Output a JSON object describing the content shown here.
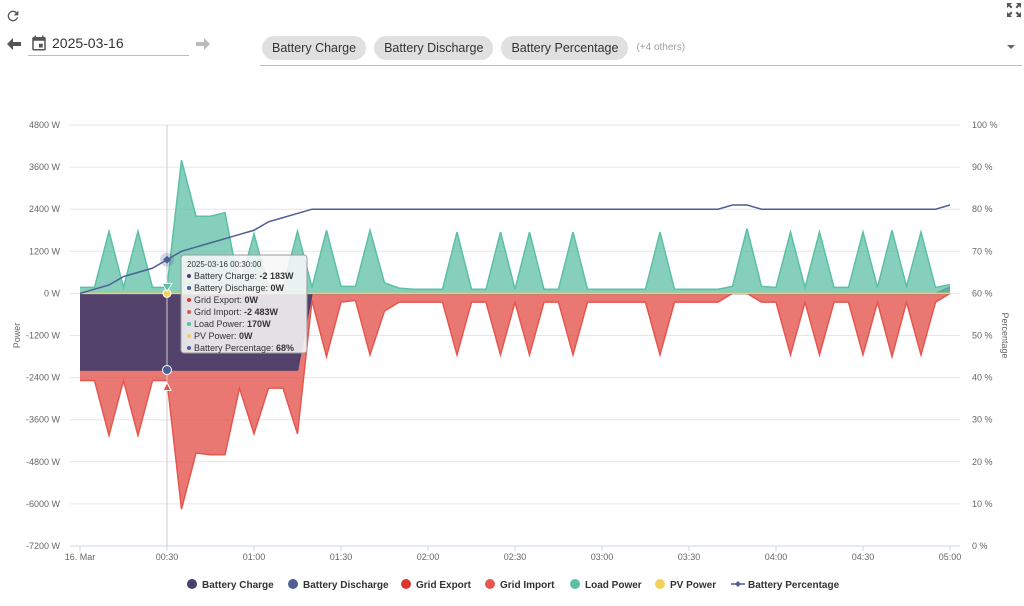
{
  "toolbar": {
    "refresh_icon": "refresh-icon",
    "fullscreen_icon": "fullscreen-icon",
    "prev_icon": "arrow-left-icon",
    "next_icon": "arrow-right-icon",
    "calendar_icon": "calendar-icon",
    "date_value": "2025-03-16",
    "dropdown_icon": "caret-down-icon"
  },
  "series_selector": {
    "chips": [
      "Battery Charge",
      "Battery Discharge",
      "Battery Percentage"
    ],
    "others_label": "(+4 others)"
  },
  "colors": {
    "battery_charge": "#4a3f6b",
    "battery_discharge": "#4e5f96",
    "grid_export": "#d9372f",
    "grid_import": "#e5564f",
    "load_power": "#5cbfa6",
    "pv_power": "#f2d15c",
    "battery_percentage": "#4e5f96"
  },
  "chart_data": {
    "type": "area",
    "title": "",
    "xlabel": "",
    "ylabel": "Power",
    "y2label": "Percentage",
    "ylim": [
      -7200,
      4800
    ],
    "y2lim": [
      0,
      100
    ],
    "grid": true,
    "legend_position": "bottom",
    "yticks": [
      "4800 W",
      "3600 W",
      "2400 W",
      "1200 W",
      "0 W",
      "-1200 W",
      "-2400 W",
      "-3600 W",
      "-4800 W",
      "-6000 W",
      "-7200 W"
    ],
    "y2ticks": [
      "100 %",
      "90 %",
      "80 %",
      "70 %",
      "60 %",
      "50 %",
      "40 %",
      "30 %",
      "20 %",
      "10 %",
      "0 %"
    ],
    "xticks": [
      "16. Mar",
      "00:30",
      "01:00",
      "01:30",
      "02:00",
      "02:30",
      "03:00",
      "03:30",
      "04:00",
      "04:30",
      "05:00"
    ],
    "x_minutes_step": 5,
    "x_range_minutes": [
      0,
      300
    ],
    "series": [
      {
        "name": "Battery Charge",
        "key": "battery_charge",
        "axis": "left",
        "kind": "area",
        "values": [
          -2183,
          -2183,
          -2183,
          -2183,
          -2183,
          -2183,
          -2183,
          -2183,
          -2183,
          -2183,
          -2183,
          -2183,
          -2183,
          -2183,
          -2183,
          -2183,
          0,
          0,
          0,
          0,
          0,
          0,
          0,
          0,
          0,
          0,
          0,
          0,
          0,
          0,
          0,
          0,
          0,
          0,
          0,
          0,
          0,
          0,
          0,
          0,
          0,
          0,
          0,
          0,
          0,
          0,
          0,
          0,
          0,
          0,
          0,
          0,
          0,
          0,
          0,
          0,
          0,
          0,
          0,
          0,
          0
        ]
      },
      {
        "name": "Battery Discharge",
        "key": "battery_discharge",
        "axis": "left",
        "kind": "area",
        "values": [
          0,
          0,
          0,
          0,
          0,
          0,
          0,
          0,
          0,
          0,
          0,
          0,
          0,
          0,
          0,
          0,
          0,
          0,
          0,
          0,
          0,
          0,
          0,
          0,
          0,
          0,
          0,
          0,
          0,
          0,
          0,
          0,
          0,
          0,
          0,
          0,
          0,
          0,
          0,
          0,
          0,
          0,
          0,
          0,
          0,
          0,
          0,
          0,
          0,
          0,
          0,
          0,
          0,
          0,
          0,
          0,
          0,
          0,
          0,
          0,
          180
        ]
      },
      {
        "name": "Grid Export",
        "key": "grid_export",
        "axis": "left",
        "kind": "area",
        "values": [
          0,
          0,
          0,
          0,
          0,
          0,
          0,
          0,
          0,
          0,
          0,
          0,
          0,
          0,
          0,
          0,
          0,
          0,
          0,
          0,
          0,
          0,
          0,
          0,
          0,
          0,
          0,
          0,
          0,
          0,
          0,
          0,
          0,
          0,
          0,
          0,
          0,
          0,
          0,
          0,
          0,
          0,
          0,
          0,
          0,
          0,
          0,
          0,
          0,
          0,
          0,
          0,
          0,
          0,
          0,
          0,
          0,
          0,
          0,
          0,
          0
        ]
      },
      {
        "name": "Grid Import",
        "key": "grid_import",
        "axis": "left",
        "kind": "area",
        "values": [
          -2483,
          -2483,
          -4050,
          -2483,
          -4050,
          -2483,
          -2483,
          -6150,
          -4550,
          -4600,
          -4600,
          -2700,
          -4000,
          -2700,
          -2700,
          -4000,
          -200,
          -1800,
          -250,
          -200,
          -1750,
          -500,
          -250,
          -250,
          -250,
          -250,
          -1750,
          -250,
          -250,
          -1750,
          -250,
          -1750,
          -250,
          -250,
          -1750,
          -250,
          -250,
          -250,
          -250,
          -250,
          -1750,
          -250,
          -250,
          -250,
          -250,
          0,
          0,
          -250,
          -250,
          -1750,
          -250,
          -1750,
          -250,
          -250,
          -1750,
          -250,
          -1800,
          -250,
          -1750,
          -250,
          0
        ]
      },
      {
        "name": "Load Power",
        "key": "load_power",
        "axis": "left",
        "kind": "area",
        "values": [
          170,
          170,
          1770,
          170,
          1770,
          170,
          170,
          3800,
          2200,
          2200,
          2300,
          170,
          1700,
          170,
          170,
          1770,
          170,
          1800,
          200,
          200,
          1800,
          300,
          150,
          120,
          120,
          120,
          1750,
          120,
          120,
          1750,
          120,
          1750,
          120,
          120,
          1750,
          120,
          120,
          120,
          120,
          120,
          1750,
          120,
          120,
          120,
          120,
          200,
          1850,
          200,
          170,
          1750,
          170,
          1750,
          170,
          170,
          1750,
          170,
          1800,
          200,
          1750,
          170,
          250
        ]
      },
      {
        "name": "PV Power",
        "key": "pv_power",
        "axis": "left",
        "kind": "area",
        "values": [
          0,
          0,
          0,
          0,
          0,
          0,
          0,
          0,
          0,
          0,
          0,
          0,
          0,
          0,
          0,
          0,
          0,
          0,
          0,
          0,
          0,
          0,
          0,
          0,
          0,
          0,
          0,
          0,
          0,
          0,
          0,
          0,
          0,
          0,
          0,
          0,
          0,
          0,
          0,
          0,
          0,
          0,
          0,
          0,
          0,
          0,
          0,
          0,
          0,
          0,
          0,
          0,
          0,
          0,
          0,
          0,
          0,
          0,
          0,
          0,
          0
        ]
      },
      {
        "name": "Battery Percentage",
        "key": "battery_percentage",
        "axis": "right",
        "kind": "line",
        "values": [
          60,
          61,
          62,
          64,
          65,
          66,
          68,
          70,
          71,
          72,
          73,
          74,
          75,
          77,
          78,
          79,
          80,
          80,
          80,
          80,
          80,
          80,
          80,
          80,
          80,
          80,
          80,
          80,
          80,
          80,
          80,
          80,
          80,
          80,
          80,
          80,
          80,
          80,
          80,
          80,
          80,
          80,
          80,
          80,
          80,
          81,
          81,
          80,
          80,
          80,
          80,
          80,
          80,
          80,
          80,
          80,
          80,
          80,
          80,
          80,
          81
        ]
      }
    ],
    "tooltip": {
      "title": "2025-03-16 00:30:00",
      "index": 6,
      "rows": [
        {
          "label": "Battery Charge",
          "value": "-2 183W",
          "key": "battery_charge"
        },
        {
          "label": "Battery Discharge",
          "value": "0W",
          "key": "battery_discharge"
        },
        {
          "label": "Grid Export",
          "value": "0W",
          "key": "grid_export"
        },
        {
          "label": "Grid Import",
          "value": "-2 483W",
          "key": "grid_import"
        },
        {
          "label": "Load Power",
          "value": "170W",
          "key": "load_power"
        },
        {
          "label": "PV Power",
          "value": "0W",
          "key": "pv_power"
        },
        {
          "label": "Battery Percentage",
          "value": "68%",
          "key": "battery_percentage"
        }
      ]
    }
  }
}
